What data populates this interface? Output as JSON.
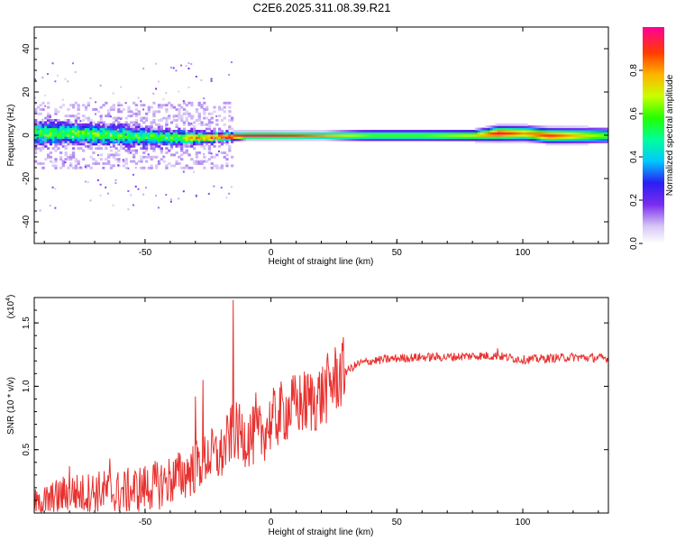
{
  "title": "C2E6.2025.311.08.39.R21",
  "colors": {
    "snr_line": "#e8312f",
    "axis": "#000000",
    "background": "#ffffff"
  },
  "chart_data": [
    {
      "type": "heatmap",
      "name": "spectrogram",
      "xlabel": "Height of straight line (km)",
      "ylabel": "Frequency (Hz)",
      "xlim": [
        -94,
        134
      ],
      "ylim": [
        -50,
        50
      ],
      "xticks": [
        -50,
        0,
        50,
        100
      ],
      "xtick_labels": [
        "-50",
        "0",
        "50",
        "100"
      ],
      "yticks": [
        -40,
        -20,
        0,
        20,
        40
      ],
      "ytick_labels": [
        "-40",
        "-20",
        "0",
        "20",
        "40"
      ],
      "colorbar": {
        "label": "Normalized spectral amplitude",
        "range": [
          0,
          1
        ],
        "ticks": [
          0.0,
          0.2,
          0.4,
          0.6,
          0.8
        ],
        "tick_labels": [
          "0.0",
          "0.2",
          "0.4",
          "0.6",
          "0.8"
        ]
      },
      "ridge": {
        "description": "dominant frequency ridge near 0 Hz",
        "x": [
          -94,
          -80,
          -60,
          -40,
          -25,
          -10,
          0,
          20,
          40,
          60,
          80,
          90,
          100,
          110,
          134
        ],
        "center_freq": [
          1,
          1,
          0,
          -1,
          -1,
          0,
          0,
          0,
          0,
          0,
          0,
          1,
          1,
          0,
          0
        ],
        "half_width": [
          7,
          6,
          6,
          5,
          3,
          2,
          2,
          2,
          3,
          3,
          3,
          4,
          4,
          4,
          4
        ],
        "peak_amplitude": [
          0.55,
          0.6,
          0.55,
          0.55,
          0.85,
          0.95,
          0.95,
          0.8,
          0.6,
          0.6,
          0.7,
          0.95,
          0.8,
          0.9,
          0.6
        ]
      }
    },
    {
      "type": "line",
      "name": "snr",
      "xlabel": "Height of straight line (km)",
      "ylabel": "SNR (10 * v/v)",
      "y_multiplier": "(x10^4)",
      "y_multiplier_base": "(x10",
      "y_multiplier_exp": "4",
      "y_multiplier_close": ")",
      "xlim": [
        -94,
        134
      ],
      "ylim": [
        0,
        1.7
      ],
      "xticks": [
        -50,
        0,
        50,
        100
      ],
      "xtick_labels": [
        "-50",
        "0",
        "50",
        "100"
      ],
      "yticks": [
        0.5,
        1.0,
        1.5
      ],
      "ytick_labels": [
        "0.5",
        "1.0",
        "1.5"
      ],
      "series": [
        {
          "name": "SNR",
          "x": [
            -94,
            -90,
            -85,
            -80,
            -75,
            -70,
            -65,
            -60,
            -55,
            -50,
            -45,
            -40,
            -35,
            -30,
            -25,
            -20,
            -15,
            -10,
            -5,
            0,
            5,
            10,
            15,
            20,
            25,
            30,
            35,
            40,
            45,
            50,
            60,
            70,
            80,
            90,
            100,
            110,
            120,
            134
          ],
          "values": [
            0.05,
            0.08,
            0.12,
            0.17,
            0.15,
            0.17,
            0.17,
            0.16,
            0.18,
            0.2,
            0.22,
            0.26,
            0.3,
            0.36,
            0.45,
            0.45,
            0.65,
            0.6,
            0.6,
            0.72,
            0.8,
            0.85,
            0.88,
            0.92,
            1.05,
            1.12,
            1.18,
            1.2,
            1.21,
            1.22,
            1.23,
            1.23,
            1.24,
            1.24,
            1.21,
            1.22,
            1.23,
            1.22
          ],
          "spikes": [
            {
              "x": -15,
              "value": 1.68
            },
            {
              "x": -27,
              "value": 1.05
            },
            {
              "x": -30,
              "value": 0.92
            },
            {
              "x": -6,
              "value": 0.95
            },
            {
              "x": -80,
              "value": 0.37
            },
            {
              "x": -64,
              "value": 0.43
            },
            {
              "x": 90,
              "value": 1.3
            }
          ]
        }
      ]
    }
  ]
}
